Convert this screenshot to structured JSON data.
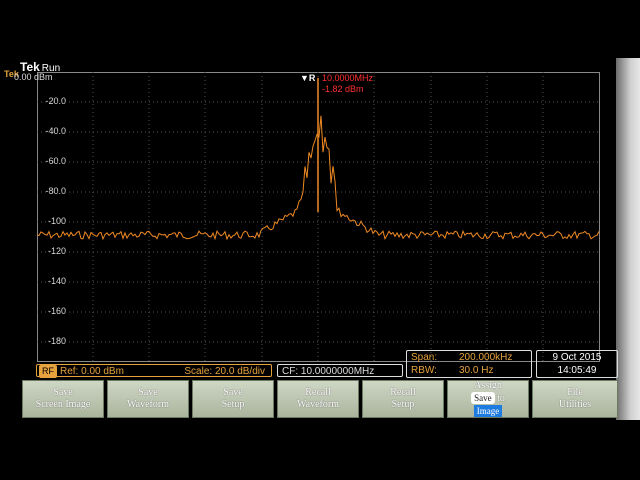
{
  "header": {
    "brand": "Tek",
    "mode": "Run",
    "side_label": "Tek"
  },
  "display": {
    "y_labels": [
      "0.00 dBm",
      "-20.0",
      "-40.0",
      "-60.0",
      "-80.0",
      "-100",
      "-120",
      "-140",
      "-160",
      "-180"
    ],
    "marker_freq": "10.0000MHz",
    "marker_level": "-1.82 dBm",
    "marker_icon": "marker-arrow-icon"
  },
  "status": {
    "rf_badge": "RF",
    "ref": "Ref: 0.00 dBm",
    "scale": "Scale: 20.0 dB/div",
    "cf": "CF:  10.0000000MHz",
    "span_label": "Span:",
    "span_value": "200.000kHz",
    "rbw_label": "RBW:",
    "rbw_value": "30.0 Hz",
    "date": "9 Oct  2015",
    "time": "14:05:49"
  },
  "softkeys": [
    {
      "line1": "Save",
      "line2": "Screen Image"
    },
    {
      "line1": "Save",
      "line2": "Waveform"
    },
    {
      "line1": "Save",
      "line2": "Setup"
    },
    {
      "line1": "Recall",
      "line2": "Waveform"
    },
    {
      "line1": "Recall",
      "line2": "Setup"
    },
    {
      "line1": "Assign",
      "mid": "Save",
      "mid_suffix": "to",
      "line2": "Image"
    },
    {
      "line1": "File",
      "line2": "Utilities"
    }
  ],
  "colors": {
    "trace": "#f08a24",
    "marker": "#ff3030",
    "accent": "#e6a23c"
  }
}
